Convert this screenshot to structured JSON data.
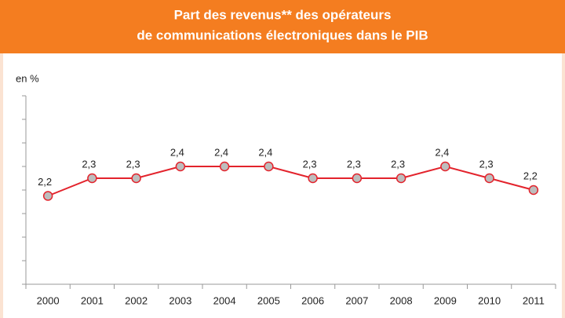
{
  "chart_data": {
    "type": "line",
    "title": [
      "Part des revenus** des opérateurs",
      "de communications électroniques dans le PIB"
    ],
    "y_label": "en %",
    "categories": [
      "2000",
      "2001",
      "2002",
      "2003",
      "2004",
      "2005",
      "2006",
      "2007",
      "2008",
      "2009",
      "2010",
      "2011"
    ],
    "series": [
      {
        "color": "#e3232c",
        "values": [
          2.15,
          2.3,
          2.3,
          2.4,
          2.4,
          2.4,
          2.3,
          2.3,
          2.3,
          2.4,
          2.3,
          2.2
        ],
        "value_labels": [
          "2,2",
          "2,3",
          "2,3",
          "2,4",
          "2,4",
          "2,4",
          "2,3",
          "2,3",
          "2,3",
          "2,4",
          "2,3",
          "2,2"
        ]
      }
    ],
    "ylim": [
      1.4,
      3.0
    ],
    "yticks": [
      1.4,
      1.6,
      1.8,
      2.0,
      2.2,
      2.4,
      2.6,
      2.8,
      3.0
    ]
  }
}
